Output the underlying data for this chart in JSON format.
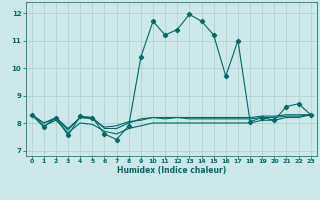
{
  "xlabel": "Humidex (Indice chaleur)",
  "xlim": [
    -0.5,
    23.5
  ],
  "ylim": [
    6.8,
    12.4
  ],
  "yticks": [
    7,
    8,
    9,
    10,
    11,
    12
  ],
  "xticks": [
    0,
    1,
    2,
    3,
    4,
    5,
    6,
    7,
    8,
    9,
    10,
    11,
    12,
    13,
    14,
    15,
    16,
    17,
    18,
    19,
    20,
    21,
    22,
    23
  ],
  "background_color": "#cce8e8",
  "grid_color": "#aacfcf",
  "line_color": "#006868",
  "series": [
    [
      8.3,
      7.85,
      8.2,
      7.55,
      8.25,
      8.2,
      7.6,
      7.4,
      7.9,
      10.4,
      11.7,
      11.2,
      11.4,
      11.95,
      11.7,
      11.2,
      9.7,
      11.0,
      8.05,
      8.2,
      8.1,
      8.6,
      8.7,
      8.3
    ],
    [
      8.3,
      8.0,
      8.15,
      7.75,
      8.2,
      8.15,
      7.85,
      7.9,
      8.05,
      8.1,
      8.2,
      8.15,
      8.2,
      8.15,
      8.15,
      8.15,
      8.15,
      8.15,
      8.15,
      8.2,
      8.2,
      8.25,
      8.25,
      8.3
    ],
    [
      8.3,
      7.9,
      8.1,
      7.65,
      8.0,
      7.95,
      7.7,
      7.6,
      7.8,
      7.9,
      8.0,
      8.0,
      8.0,
      8.0,
      8.0,
      8.0,
      8.0,
      8.0,
      8.0,
      8.1,
      8.1,
      8.2,
      8.2,
      8.3
    ],
    [
      8.3,
      8.0,
      8.2,
      7.8,
      8.2,
      8.2,
      7.8,
      7.8,
      8.0,
      8.15,
      8.2,
      8.2,
      8.2,
      8.2,
      8.2,
      8.2,
      8.2,
      8.2,
      8.2,
      8.25,
      8.25,
      8.3,
      8.3,
      8.3
    ]
  ]
}
